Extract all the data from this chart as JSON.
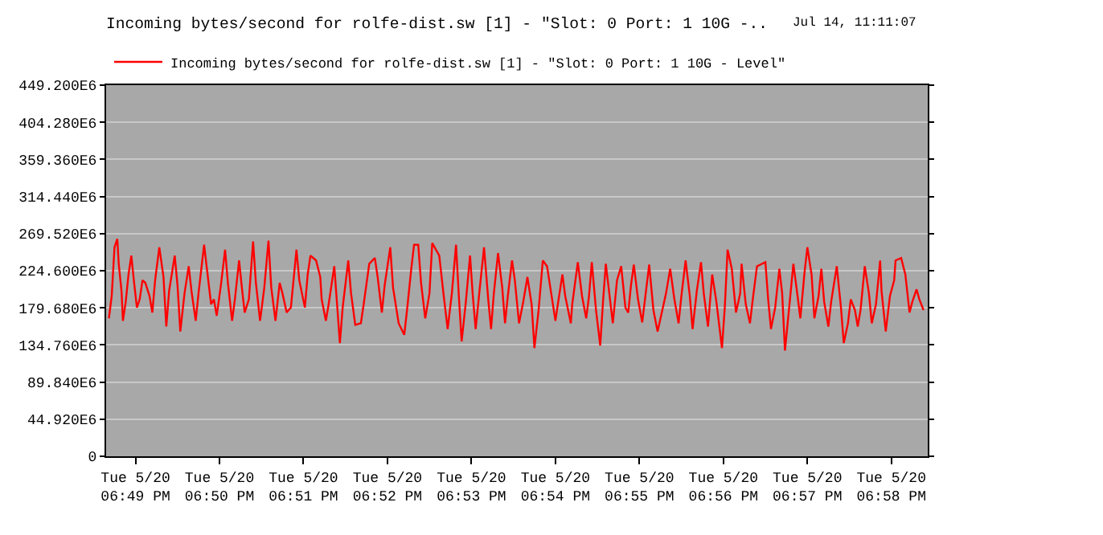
{
  "chart_data": {
    "type": "line",
    "title": "Incoming bytes/second for rolfe-dist.sw [1] - \"Slot: 0 Port: 1 10G -..",
    "annotations": [
      "Jul 14, 11:11:07"
    ],
    "legend": "top left",
    "grid": "y",
    "marker": "none",
    "line_style": "solid",
    "xlim": [
      "--05-20T18:48:39",
      "--05-20T18:58:26"
    ],
    "xticks": [
      {
        "value": "--05-20T18:49",
        "label": "Tue 5/20\n06:49 PM"
      },
      {
        "value": "--05-20T18:50",
        "label": "Tue 5/20\n06:50 PM"
      },
      {
        "value": "--05-20T18:51",
        "label": "Tue 5/20\n06:51 PM"
      },
      {
        "value": "--05-20T18:52",
        "label": "Tue 5/20\n06:52 PM"
      },
      {
        "value": "--05-20T18:53",
        "label": "Tue 5/20\n06:53 PM"
      },
      {
        "value": "--05-20T18:54",
        "label": "Tue 5/20\n06:54 PM"
      },
      {
        "value": "--05-20T18:55",
        "label": "Tue 5/20\n06:55 PM"
      },
      {
        "value": "--05-20T18:56",
        "label": "Tue 5/20\n06:56 PM"
      },
      {
        "value": "--05-20T18:57",
        "label": "Tue 5/20\n06:57 PM"
      },
      {
        "value": "--05-20T18:58",
        "label": "Tue 5/20\n06:58 PM"
      }
    ],
    "ylim": [
      0,
      449200000.0
    ],
    "yticks": [
      0,
      {
        "value": 44920000.0,
        "label": "44.920E6"
      },
      {
        "value": 89840000.0,
        "label": "89.840E6"
      },
      {
        "value": 134760000.0,
        "label": "134.760E6"
      },
      {
        "value": 179680000.0,
        "label": "179.680E6"
      },
      {
        "value": 224600000.0,
        "label": "224.600E6"
      },
      {
        "value": 269520000.0,
        "label": "269.520E6"
      },
      {
        "value": 314440000.0,
        "label": "314.440E6"
      },
      {
        "value": 359360000.0,
        "label": "359.360E6"
      },
      {
        "value": 404280000.0,
        "label": "404.280E6"
      },
      {
        "value": 449200000.0,
        "label": "449.200E6"
      }
    ],
    "series": [
      {
        "name": "Incoming bytes/second for rolfe-dist.sw [1] - \"Slot: 0 Port: 1 10G - Level\"",
        "color": "#ff0000",
        "x": [
          "--05-20T18:48:41",
          "--05-20T18:48:43",
          "--05-20T18:48:45",
          "--05-20T18:48:47",
          "--05-20T18:48:48",
          "--05-20T18:48:50",
          "--05-20T18:48:51",
          "--05-20T18:48:53",
          "--05-20T18:48:55",
          "--05-20T18:48:57",
          "--05-20T18:48:59",
          "--05-20T18:49:01",
          "--05-20T18:49:03",
          "--05-20T18:49:05",
          "--05-20T18:49:07",
          "--05-20T18:49:10",
          "--05-20T18:49:12",
          "--05-20T18:49:14",
          "--05-20T18:49:17",
          "--05-20T18:49:20",
          "--05-20T18:49:22",
          "--05-20T18:49:24",
          "--05-20T18:49:28",
          "--05-20T18:49:30",
          "--05-20T18:49:32",
          "--05-20T18:49:35",
          "--05-20T18:49:38",
          "--05-20T18:49:40",
          "--05-20T18:49:43",
          "--05-20T18:49:45",
          "--05-20T18:49:49",
          "--05-20T18:49:51",
          "--05-20T18:49:54",
          "--05-20T18:49:56",
          "--05-20T18:49:58",
          "--05-20T18:50:01",
          "--05-20T18:50:04",
          "--05-20T18:50:06",
          "--05-20T18:50:09",
          "--05-20T18:50:11",
          "--05-20T18:50:14",
          "--05-20T18:50:16",
          "--05-20T18:50:18",
          "--05-20T18:50:21",
          "--05-20T18:50:24",
          "--05-20T18:50:26",
          "--05-20T18:50:29",
          "--05-20T18:50:32",
          "--05-20T18:50:35",
          "--05-20T18:50:37",
          "--05-20T18:50:40",
          "--05-20T18:50:43",
          "--05-20T18:50:45",
          "--05-20T18:50:48",
          "--05-20T18:50:51",
          "--05-20T18:50:55",
          "--05-20T18:50:57",
          "--05-20T18:51:01",
          "--05-20T18:51:03",
          "--05-20T18:51:05",
          "--05-20T18:51:09",
          "--05-20T18:51:12",
          "--05-20T18:51:13",
          "--05-20T18:51:16",
          "--05-20T18:51:18",
          "--05-20T18:51:22",
          "--05-20T18:51:24",
          "--05-20T18:51:26",
          "--05-20T18:51:28",
          "--05-20T18:51:32",
          "--05-20T18:51:34",
          "--05-20T18:51:37",
          "--05-20T18:51:41",
          "--05-20T18:51:43",
          "--05-20T18:51:47",
          "--05-20T18:51:51",
          "--05-20T18:51:53",
          "--05-20T18:51:56",
          "--05-20T18:51:58",
          "--05-20T18:52:02",
          "--05-20T18:52:04",
          "--05-20T18:52:08",
          "--05-20T18:52:12",
          "--05-20T18:52:14",
          "--05-20T18:52:17",
          "--05-20T18:52:19",
          "--05-20T18:52:22",
          "--05-20T18:52:24",
          "--05-20T18:52:27",
          "--05-20T18:52:30",
          "--05-20T18:52:32",
          "--05-20T18:52:37",
          "--05-20T18:52:40",
          "--05-20T18:52:43",
          "--05-20T18:52:46",
          "--05-20T18:52:49",
          "--05-20T18:52:51",
          "--05-20T18:52:53",
          "--05-20T18:52:56",
          "--05-20T18:52:59",
          "--05-20T18:53:01",
          "--05-20T18:53:03",
          "--05-20T18:53:06",
          "--05-20T18:53:09",
          "--05-20T18:53:12",
          "--05-20T18:53:14",
          "--05-20T18:53:16",
          "--05-20T18:53:19",
          "--05-20T18:53:22",
          "--05-20T18:53:24",
          "--05-20T18:53:26",
          "--05-20T18:53:29",
          "--05-20T18:53:31",
          "--05-20T18:53:34",
          "--05-20T18:53:37",
          "--05-20T18:53:40",
          "--05-20T18:53:43",
          "--05-20T18:53:45",
          "--05-20T18:53:48",
          "--05-20T18:53:51",
          "--05-20T18:53:54",
          "--05-20T18:53:57",
          "--05-20T18:54:00",
          "--05-20T18:54:02",
          "--05-20T18:54:05",
          "--05-20T18:54:07",
          "--05-20T18:54:11",
          "--05-20T18:54:12",
          "--05-20T18:54:16",
          "--05-20T18:54:19",
          "--05-20T18:54:22",
          "--05-20T18:54:24",
          "--05-20T18:54:26",
          "--05-20T18:54:29",
          "--05-20T18:54:32",
          "--05-20T18:54:34",
          "--05-20T18:54:36",
          "--05-20T18:54:39",
          "--05-20T18:54:41",
          "--05-20T18:54:44",
          "--05-20T18:54:47",
          "--05-20T18:54:50",
          "--05-20T18:54:52",
          "--05-20T18:54:54",
          "--05-20T18:54:56",
          "--05-20T18:54:59",
          "--05-20T18:55:02",
          "--05-20T18:55:04",
          "--05-20T18:55:07",
          "--05-20T18:55:10",
          "--05-20T18:55:13",
          "--05-20T18:55:16",
          "--05-20T18:55:19",
          "--05-20T18:55:22",
          "--05-20T18:55:25",
          "--05-20T18:55:28",
          "--05-20T18:55:30",
          "--05-20T18:55:33",
          "--05-20T18:55:36",
          "--05-20T18:55:38",
          "--05-20T18:55:41",
          "--05-20T18:55:44",
          "--05-20T18:55:46",
          "--05-20T18:55:49",
          "--05-20T18:55:52",
          "--05-20T18:55:55",
          "--05-20T18:55:59",
          "--05-20T18:56:01",
          "--05-20T18:56:03",
          "--05-20T18:56:06",
          "--05-20T18:56:09",
          "--05-20T18:56:12",
          "--05-20T18:56:13",
          "--05-20T18:56:16",
          "--05-20T18:56:19",
          "--05-20T18:56:21",
          "--05-20T18:56:24",
          "--05-20T18:56:30",
          "--05-20T18:56:32",
          "--05-20T18:56:34",
          "--05-20T18:56:37",
          "--05-20T18:56:40",
          "--05-20T18:56:42",
          "--05-20T18:56:44",
          "--05-20T18:56:47",
          "--05-20T18:56:50",
          "--05-20T18:56:53",
          "--05-20T18:56:55",
          "--05-20T18:56:58",
          "--05-20T18:57:00",
          "--05-20T18:57:03",
          "--05-20T18:57:05",
          "--05-20T18:57:08",
          "--05-20T18:57:10",
          "--05-20T18:57:12",
          "--05-20T18:57:15",
          "--05-20T18:57:17",
          "--05-20T18:57:21",
          "--05-20T18:57:24",
          "--05-20T18:57:26",
          "--05-20T18:57:29",
          "--05-20T18:57:31",
          "--05-20T18:57:34",
          "--05-20T18:57:36",
          "--05-20T18:57:38",
          "--05-20T18:57:41",
          "--05-20T18:57:44",
          "--05-20T18:57:46",
          "--05-20T18:57:49",
          "--05-20T18:57:52",
          "--05-20T18:57:53",
          "--05-20T18:57:56",
          "--05-20T18:57:59",
          "--05-20T18:58:02",
          "--05-20T18:58:03",
          "--05-20T18:58:07",
          "--05-20T18:58:10",
          "--05-20T18:58:13",
          "--05-20T18:58:15",
          "--05-20T18:58:18",
          "--05-20T18:58:20",
          "--05-20T18:58:23"
        ],
        "values": [
          167000000.0,
          194000000.0,
          253000000.0,
          263000000.0,
          233000000.0,
          200000000.0,
          164000000.0,
          187000000.0,
          220000000.0,
          243000000.0,
          210000000.0,
          180000000.0,
          190000000.0,
          213000000.0,
          210000000.0,
          194000000.0,
          174000000.0,
          213000000.0,
          253000000.0,
          217000000.0,
          157000000.0,
          200000000.0,
          243000000.0,
          207000000.0,
          151000000.0,
          197000000.0,
          230000000.0,
          200000000.0,
          164000000.0,
          197000000.0,
          256000000.0,
          227000000.0,
          184000000.0,
          190000000.0,
          170000000.0,
          207000000.0,
          250000000.0,
          210000000.0,
          164000000.0,
          190000000.0,
          237000000.0,
          204000000.0,
          174000000.0,
          190000000.0,
          260000000.0,
          210000000.0,
          164000000.0,
          204000000.0,
          261000000.0,
          204000000.0,
          164000000.0,
          210000000.0,
          197000000.0,
          174000000.0,
          180000000.0,
          250000000.0,
          213000000.0,
          180000000.0,
          220000000.0,
          243000000.0,
          237000000.0,
          217000000.0,
          190000000.0,
          164000000.0,
          184000000.0,
          230000000.0,
          184000000.0,
          137000000.0,
          180000000.0,
          237000000.0,
          197000000.0,
          159000000.0,
          161000000.0,
          184000000.0,
          233000000.0,
          240000000.0,
          217000000.0,
          174000000.0,
          207000000.0,
          253000000.0,
          204000000.0,
          161000000.0,
          147000000.0,
          177000000.0,
          227000000.0,
          256000000.0,
          256000000.0,
          210000000.0,
          167000000.0,
          197000000.0,
          258000000.0,
          243000000.0,
          197000000.0,
          154000000.0,
          197000000.0,
          256000000.0,
          194000000.0,
          139000000.0,
          187000000.0,
          243000000.0,
          194000000.0,
          154000000.0,
          204000000.0,
          253000000.0,
          190000000.0,
          154000000.0,
          197000000.0,
          246000000.0,
          204000000.0,
          161000000.0,
          194000000.0,
          237000000.0,
          213000000.0,
          161000000.0,
          187000000.0,
          217000000.0,
          184000000.0,
          131000000.0,
          177000000.0,
          237000000.0,
          230000000.0,
          197000000.0,
          164000000.0,
          187000000.0,
          220000000.0,
          194000000.0,
          161000000.0,
          184000000.0,
          235000000.0,
          194000000.0,
          167000000.0,
          194000000.0,
          235000000.0,
          177000000.0,
          134000000.0,
          187000000.0,
          233000000.0,
          190000000.0,
          161000000.0,
          213000000.0,
          230000000.0,
          180000000.0,
          174000000.0,
          207000000.0,
          232000000.0,
          190000000.0,
          162000000.0,
          190000000.0,
          232000000.0,
          177000000.0,
          151000000.0,
          174000000.0,
          197000000.0,
          227000000.0,
          190000000.0,
          161000000.0,
          194000000.0,
          237000000.0,
          194000000.0,
          154000000.0,
          200000000.0,
          235000000.0,
          197000000.0,
          157000000.0,
          220000000.0,
          187000000.0,
          131000000.0,
          180000000.0,
          250000000.0,
          227000000.0,
          174000000.0,
          197000000.0,
          233000000.0,
          184000000.0,
          161000000.0,
          190000000.0,
          230000000.0,
          235000000.0,
          190000000.0,
          154000000.0,
          180000000.0,
          227000000.0,
          197000000.0,
          128000000.0,
          180000000.0,
          233000000.0,
          194000000.0,
          167000000.0,
          223000000.0,
          253000000.0,
          220000000.0,
          167000000.0,
          194000000.0,
          227000000.0,
          187000000.0,
          157000000.0,
          187000000.0,
          230000000.0,
          180000000.0,
          137000000.0,
          161000000.0,
          190000000.0,
          177000000.0,
          157000000.0,
          177000000.0,
          230000000.0,
          197000000.0,
          161000000.0,
          184000000.0,
          237000000.0,
          200000000.0,
          151000000.0,
          194000000.0,
          213000000.0,
          237000000.0,
          240000000.0,
          220000000.0,
          174000000.0,
          187000000.0,
          202000000.0,
          190000000.0,
          177000000.0
        ]
      }
    ]
  }
}
